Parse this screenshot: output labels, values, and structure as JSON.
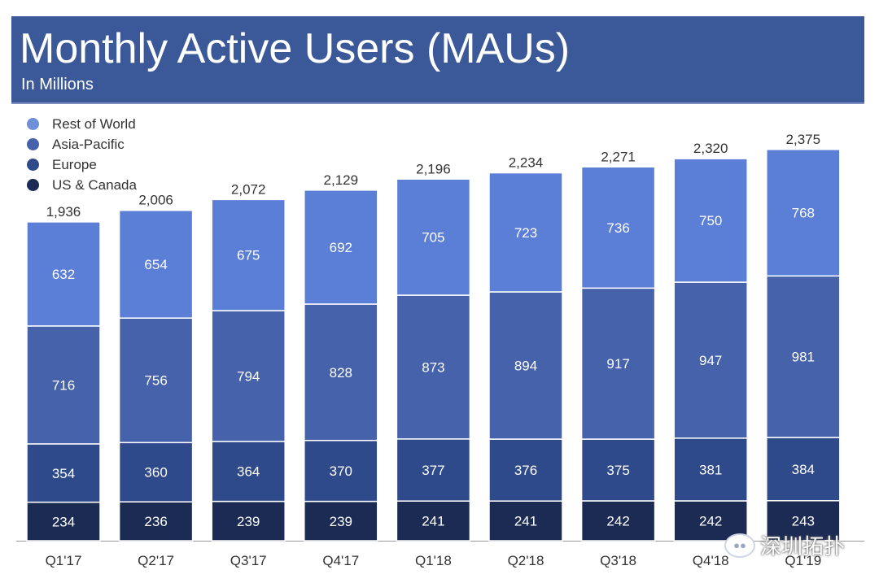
{
  "header": {
    "title": "Monthly Active Users (MAUs)",
    "subtitle": "In Millions"
  },
  "colors": {
    "header_bg": "#3b5998",
    "rest_of_world": "#5b7ed6",
    "asia_pacific": "#4562aa",
    "europe": "#2f4a8a",
    "us_canada": "#1c2b54"
  },
  "watermark": {
    "icon": "wechat-icon",
    "text": "深圳拓扑"
  },
  "chart_data": {
    "type": "bar",
    "stacked": true,
    "title": "Monthly Active Users (MAUs)",
    "subtitle": "In Millions",
    "categories": [
      "Q1'17",
      "Q2'17",
      "Q3'17",
      "Q4'17",
      "Q1'18",
      "Q2'18",
      "Q3'18",
      "Q4'18",
      "Q1'19"
    ],
    "totals": [
      "1,936",
      "2,006",
      "2,072",
      "2,129",
      "2,196",
      "2,234",
      "2,271",
      "2,320",
      "2,375"
    ],
    "total_values": [
      1936,
      2006,
      2072,
      2129,
      2196,
      2234,
      2271,
      2320,
      2375
    ],
    "series": [
      {
        "name": "US & Canada",
        "color": "#1c2b54",
        "values": [
          234,
          236,
          239,
          239,
          241,
          241,
          242,
          242,
          243
        ]
      },
      {
        "name": "Europe",
        "color": "#2f4a8a",
        "values": [
          354,
          360,
          364,
          370,
          377,
          376,
          375,
          381,
          384
        ]
      },
      {
        "name": "Asia-Pacific",
        "color": "#4562aa",
        "values": [
          716,
          756,
          794,
          828,
          873,
          894,
          917,
          947,
          981
        ]
      },
      {
        "name": "Rest of World",
        "color": "#5b7ed6",
        "values": [
          632,
          654,
          675,
          692,
          705,
          723,
          736,
          750,
          768
        ]
      }
    ],
    "legend": [
      "Rest of World",
      "Asia-Pacific",
      "Europe",
      "US & Canada"
    ],
    "legend_placement": "top-left",
    "ylim": [
      0,
      2375
    ],
    "grid": false
  }
}
